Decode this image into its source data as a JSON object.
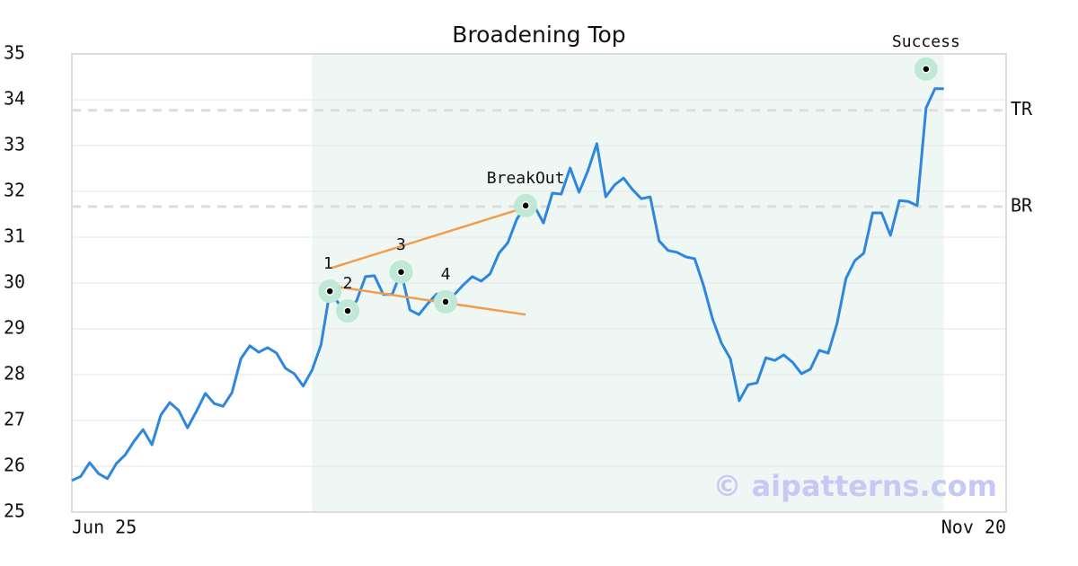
{
  "chart_data": {
    "type": "line",
    "title": "Broadening Top",
    "xlim": [
      0,
      105
    ],
    "xticks": [
      {
        "value": 0,
        "label": "Jun 25"
      },
      {
        "value": 105,
        "label": "Nov 20"
      }
    ],
    "ylim": [
      25,
      35
    ],
    "yticks": [
      25,
      26,
      27,
      28,
      29,
      30,
      31,
      32,
      33,
      34,
      35
    ],
    "grid": true,
    "series": [
      {
        "color": "#2e86de",
        "values": [
          25.69,
          25.78,
          26.08,
          25.84,
          25.73,
          26.06,
          26.25,
          26.55,
          26.8,
          26.47,
          27.12,
          27.39,
          27.22,
          26.84,
          27.2,
          27.59,
          27.37,
          27.31,
          27.61,
          28.35,
          28.63,
          28.49,
          28.59,
          28.47,
          28.14,
          28.02,
          27.75,
          28.1,
          28.65,
          29.82,
          29.55,
          29.39,
          29.61,
          30.14,
          30.16,
          29.75,
          29.75,
          30.24,
          29.41,
          29.31,
          29.55,
          29.76,
          29.59,
          29.75,
          29.96,
          30.14,
          30.04,
          30.2,
          30.65,
          30.88,
          31.39,
          31.69,
          31.67,
          31.31,
          31.96,
          31.94,
          32.51,
          31.98,
          32.45,
          33.04,
          31.88,
          32.14,
          32.29,
          32.04,
          31.84,
          31.88,
          30.92,
          30.71,
          30.67,
          30.57,
          30.53,
          29.94,
          29.22,
          28.69,
          28.35,
          27.43,
          27.78,
          27.82,
          28.37,
          28.31,
          28.43,
          28.27,
          28.02,
          28.12,
          28.53,
          28.47,
          29.12,
          30.1,
          30.49,
          30.65,
          31.53,
          31.53,
          31.04,
          31.8,
          31.78,
          31.69,
          33.82,
          34.24,
          34.24
        ]
      }
    ],
    "shaded_range": [
      27,
      98
    ],
    "shade_color": "#eef7f3",
    "levels": [
      {
        "label": "TR",
        "value": 33.77
      },
      {
        "label": "BR",
        "value": 31.67
      }
    ],
    "trend_lines": [
      {
        "color": "#f39c4a",
        "x": [
          29.2,
          51
        ],
        "values": [
          30.33,
          31.65
        ]
      },
      {
        "color": "#f39c4a",
        "x": [
          29,
          51
        ],
        "values": [
          29.94,
          29.31
        ]
      }
    ],
    "points": [
      {
        "label": "1",
        "x": 29,
        "value": 29.82
      },
      {
        "label": "2",
        "x": 31,
        "value": 29.39
      },
      {
        "label": "3",
        "x": 37,
        "value": 30.24
      },
      {
        "label": "4",
        "x": 42,
        "value": 29.59
      },
      {
        "label": "BreakOut",
        "x": 51,
        "value": 31.69
      },
      {
        "label": "Success",
        "x": 96,
        "value": 34.67
      }
    ],
    "watermark": "© aipatterns.com"
  }
}
